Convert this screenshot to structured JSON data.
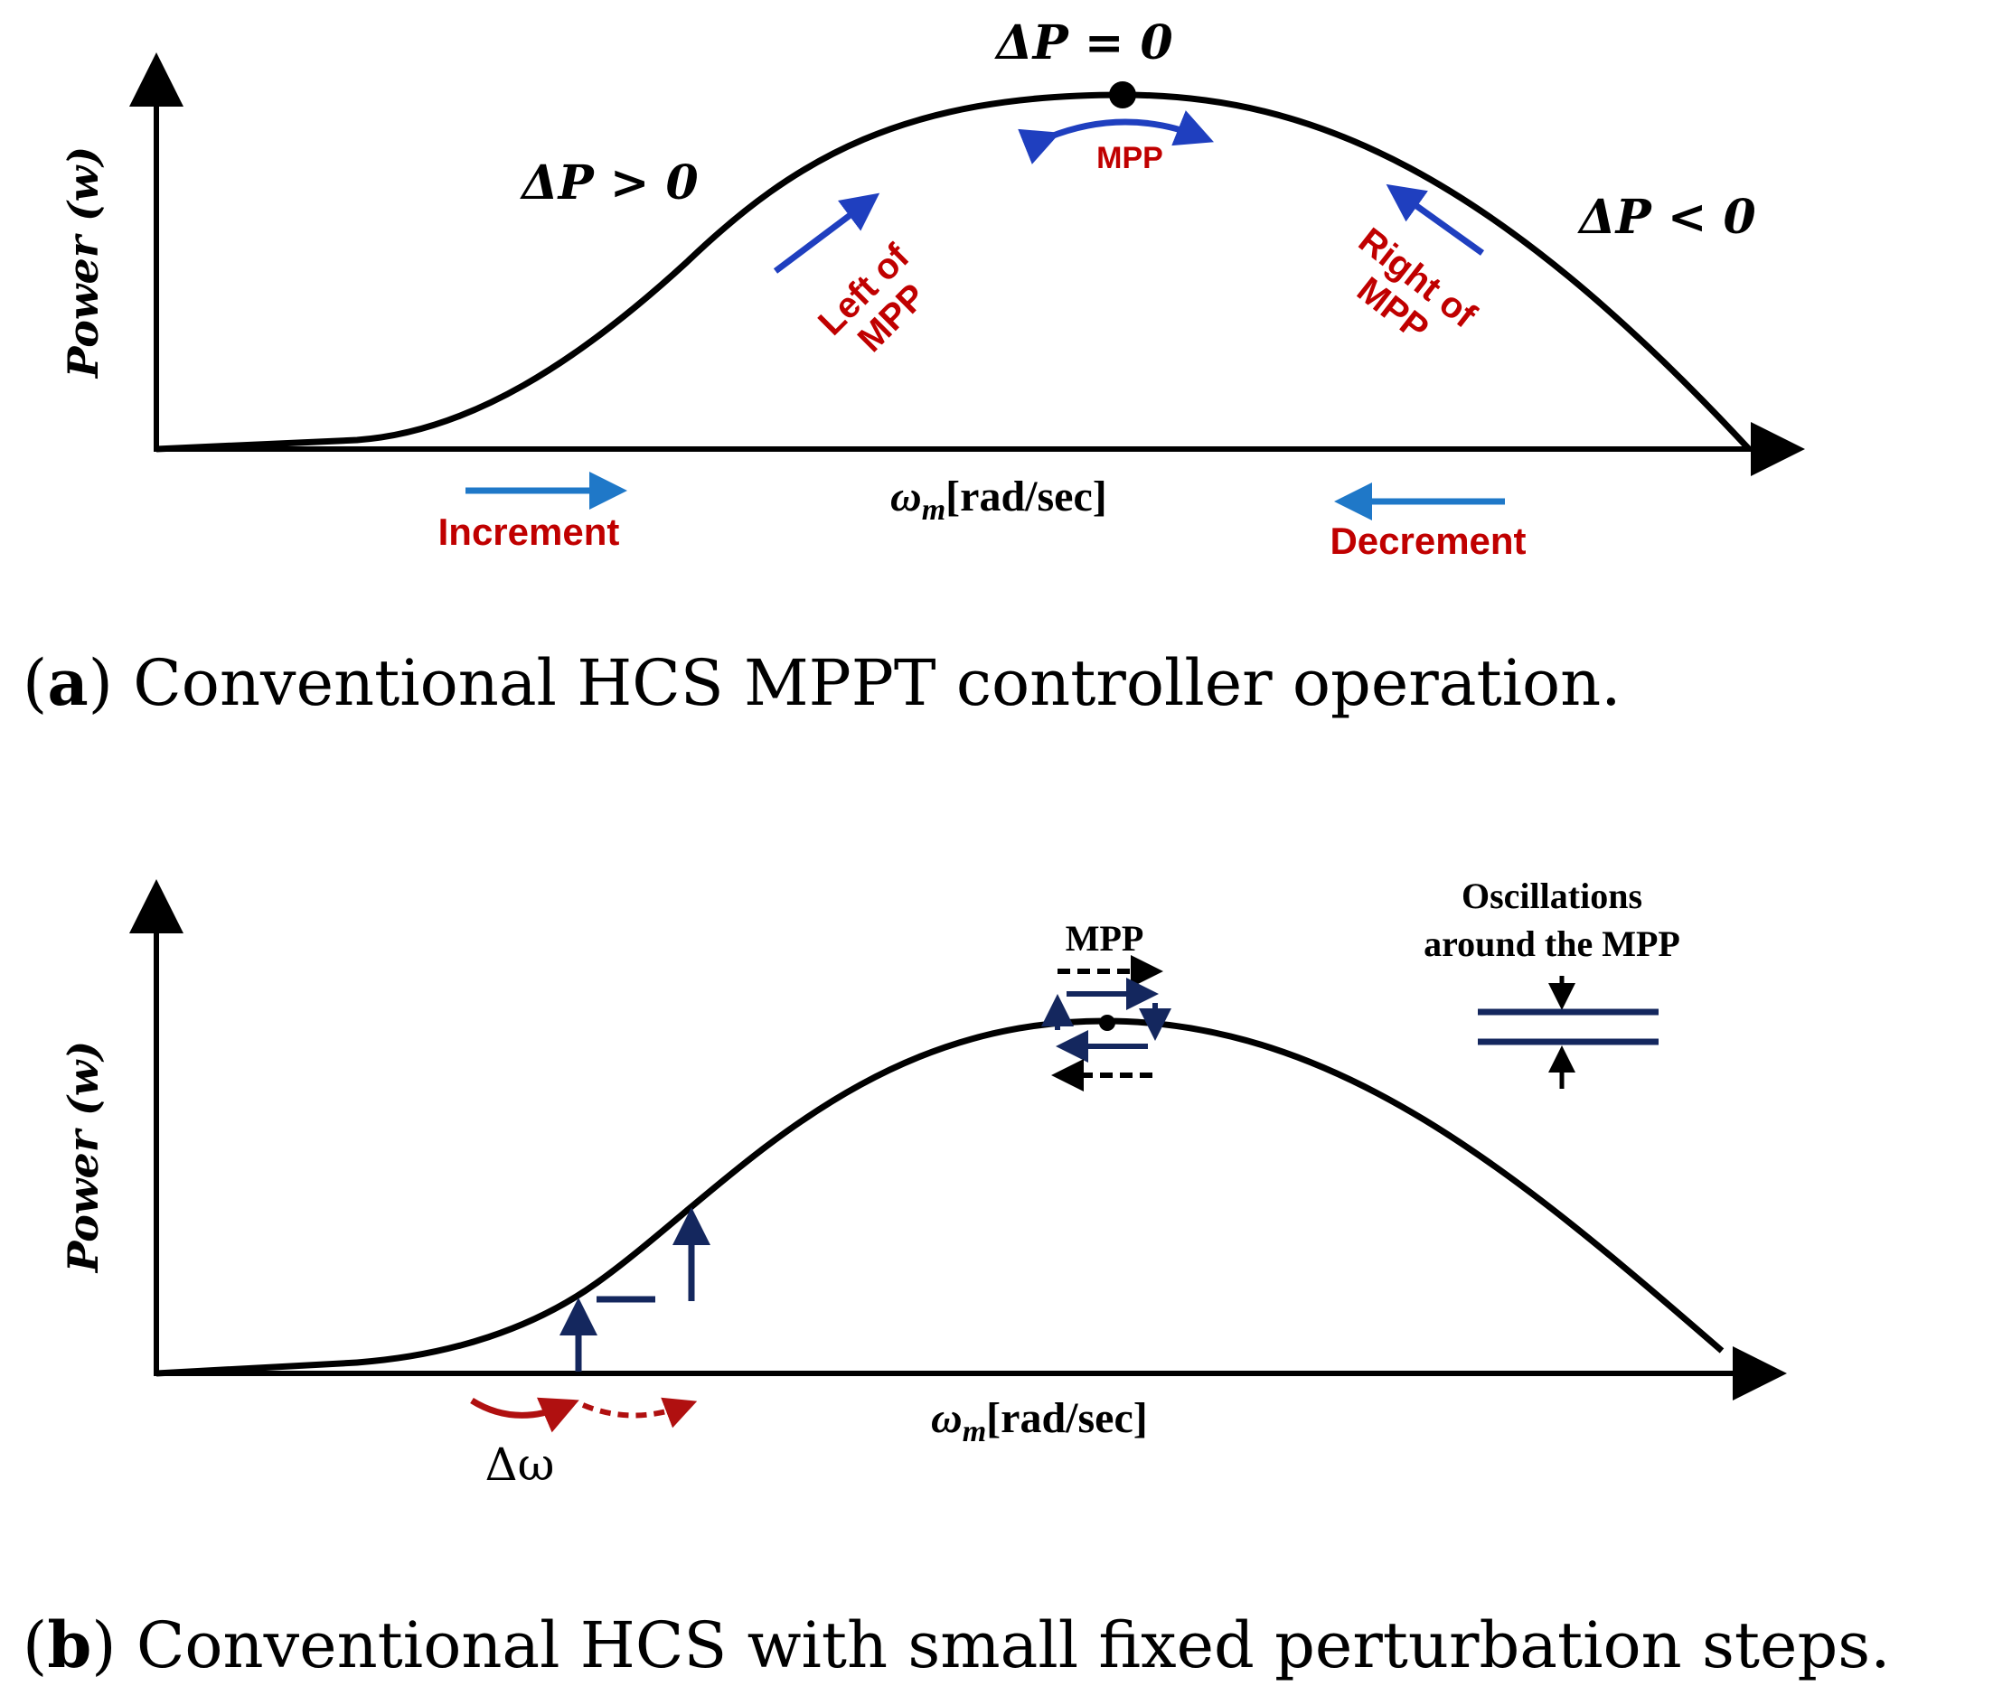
{
  "panel_a": {
    "y_axis_label": "Power (w)",
    "x_axis_label_main": "ω",
    "x_axis_label_sub": "m",
    "x_axis_label_units": "[rad/sec]",
    "dp_zero": "ΔP = 0",
    "dp_positive": "ΔP > 0",
    "dp_negative": "ΔP < 0",
    "mpp_label": "MPP",
    "left_of_mpp_line1": "Left of",
    "left_of_mpp_line2": "MPP",
    "right_of_mpp_line1": "Right of",
    "right_of_mpp_line2": "MPP",
    "increment_label": "Increment",
    "decrement_label": "Decrement",
    "caption_letter": "a",
    "caption_text": " Conventional HCS MPPT controller operation."
  },
  "panel_b": {
    "y_axis_label": "Power (w)",
    "x_axis_label_main": "ω",
    "x_axis_label_sub": "m",
    "x_axis_label_units": "[rad/sec]",
    "mpp_label": "MPP",
    "oscillations_line1": "Oscillations",
    "oscillations_line2": "around the MPP",
    "delta_omega_label": "Δω",
    "caption_letter": "b",
    "caption_text": " Conventional HCS with small fixed perturbation steps."
  },
  "colors": {
    "curve": "#000000",
    "red_text": "#c00000",
    "blue_arrow": "#1f3fbf",
    "light_blue_arrow": "#1f78c8",
    "navy": "#14275e",
    "dark_red": "#b01010"
  }
}
